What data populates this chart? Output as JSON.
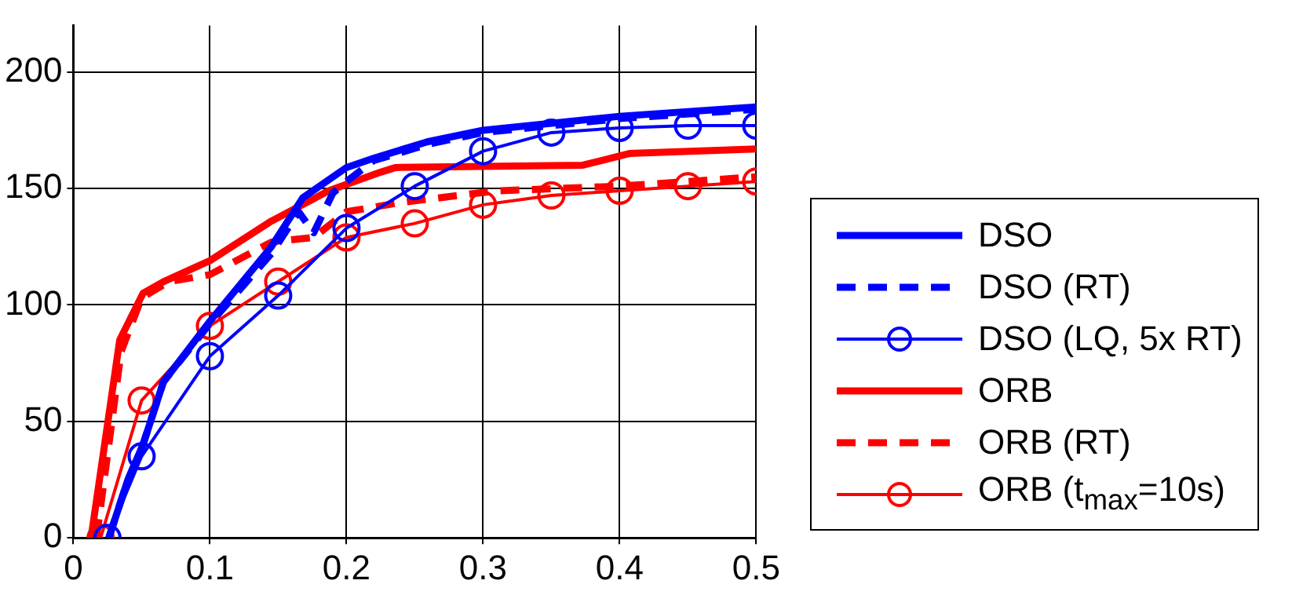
{
  "chart_data": {
    "type": "line",
    "xlim": [
      0,
      0.5
    ],
    "ylim": [
      0,
      220
    ],
    "xticks": [
      0,
      0.1,
      0.2,
      0.3,
      0.4,
      0.5
    ],
    "yticks": [
      0,
      50,
      100,
      150,
      200
    ],
    "grid": true,
    "legend": "right",
    "series": [
      {
        "name": "DSO",
        "color": "#0000ff",
        "line_style": "solid",
        "marker": "none",
        "x": [
          0.026,
          0.04,
          0.051,
          0.066,
          0.1,
          0.145,
          0.168,
          0.2,
          0.22,
          0.259,
          0.3,
          0.4,
          0.5
        ],
        "values": [
          0,
          25,
          40,
          67,
          93,
          125,
          146,
          159,
          163,
          170,
          175,
          181,
          185
        ]
      },
      {
        "name": "DSO (RT)",
        "color": "#0000ff",
        "line_style": "dashed",
        "marker": "none",
        "x": [
          0.026,
          0.04,
          0.051,
          0.066,
          0.1,
          0.145,
          0.165,
          0.176,
          0.19,
          0.2,
          0.22,
          0.26,
          0.3,
          0.4,
          0.5
        ],
        "values": [
          0,
          25,
          40,
          67,
          92,
          122,
          140,
          131,
          148,
          153,
          162,
          169,
          174,
          180,
          184
        ]
      },
      {
        "name": "DSO (LQ, 5x RT)",
        "color": "#0000ff",
        "line_style": "solid",
        "marker": "circle",
        "x": [
          0.025,
          0.05,
          0.1,
          0.15,
          0.2,
          0.25,
          0.3,
          0.35,
          0.4,
          0.45,
          0.5
        ],
        "values": [
          0,
          35,
          78,
          104,
          133,
          151,
          166,
          174,
          176,
          177,
          177
        ]
      },
      {
        "name": "ORB",
        "color": "#ff0000",
        "line_style": "solid",
        "marker": "none",
        "x": [
          0.013,
          0.034,
          0.051,
          0.066,
          0.1,
          0.145,
          0.187,
          0.225,
          0.236,
          0.373,
          0.407,
          0.5
        ],
        "values": [
          0,
          85,
          105,
          110,
          119,
          136,
          149,
          157,
          159,
          160,
          165,
          167
        ]
      },
      {
        "name": "ORB (RT)",
        "color": "#ff0000",
        "line_style": "dashed",
        "marker": "none",
        "x": [
          0.017,
          0.035,
          0.05,
          0.07,
          0.1,
          0.145,
          0.176,
          0.2,
          0.24,
          0.31,
          0.4,
          0.5
        ],
        "values": [
          0,
          80,
          103,
          110,
          113,
          127,
          129,
          140,
          144,
          149,
          151,
          155
        ]
      },
      {
        "name": "ORB (t$_{max}$=10s)",
        "color": "#ff0000",
        "line_style": "solid",
        "marker": "circle",
        "x": [
          0.02,
          0.05,
          0.1,
          0.15,
          0.2,
          0.25,
          0.3,
          0.35,
          0.4,
          0.45,
          0.5
        ],
        "values": [
          0,
          59,
          91,
          110,
          129,
          135,
          143,
          147,
          149,
          151,
          153
        ]
      }
    ]
  }
}
